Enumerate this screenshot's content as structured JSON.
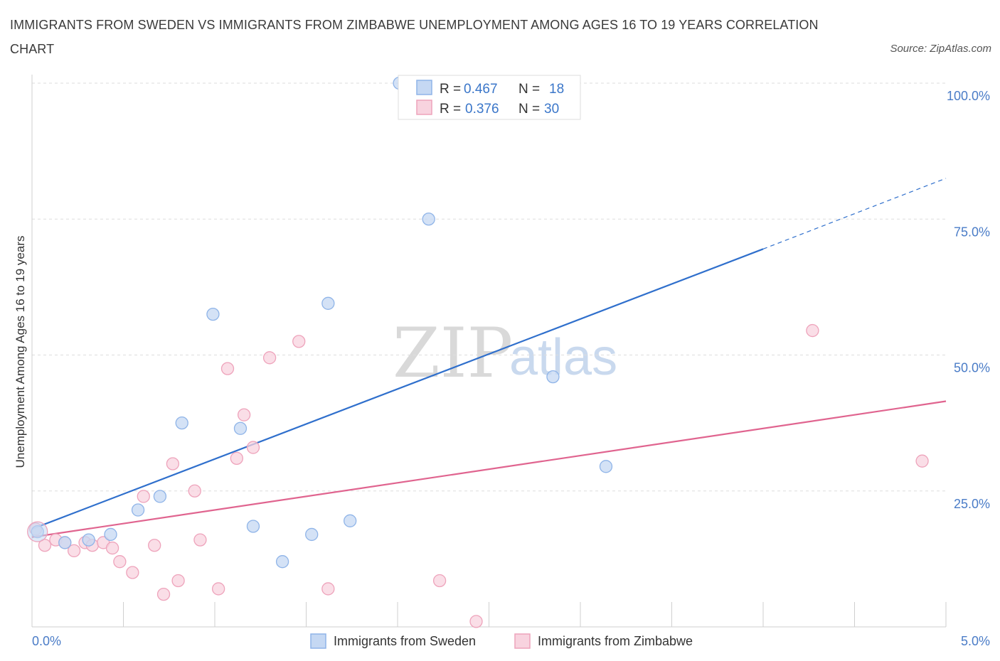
{
  "title": "IMMIGRANTS FROM SWEDEN VS IMMIGRANTS FROM ZIMBABWE UNEMPLOYMENT AMONG AGES 16 TO 19 YEARS CORRELATION CHART",
  "source": "Source: ZipAtlas.com",
  "watermark": {
    "zip": "ZIP",
    "atlas": "atlas"
  },
  "chart_data": {
    "type": "scatter",
    "xlabel": "",
    "ylabel": "Unemployment Among Ages 16 to 19 years",
    "xlim": [
      0,
      5
    ],
    "ylim": [
      0,
      100
    ],
    "x_tick_labels": {
      "min": "0.0%",
      "max": "5.0%"
    },
    "y_ticks": [
      {
        "value": 100,
        "label": "100.0%"
      },
      {
        "value": 75,
        "label": "75.0%"
      },
      {
        "value": 50,
        "label": "50.0%"
      },
      {
        "value": 25,
        "label": "25.0%"
      }
    ],
    "legend": {
      "entries": [
        {
          "r_label": "R =",
          "r_value": "0.467",
          "n_label": "N =",
          "n_value": "18"
        },
        {
          "r_label": "R =",
          "r_value": "0.376",
          "n_label": "N =",
          "n_value": "30"
        }
      ]
    },
    "series": [
      {
        "name": "Immigrants from Sweden",
        "color": "#8fb4e8",
        "fill": "#c5d8f3",
        "line_color": "#2f6fcc",
        "trend": {
          "x0": 0.0,
          "y0": 18.0,
          "x1": 4.0,
          "y1": 69.5,
          "dash_to_x": 5.0,
          "dash_to_y": 82.5
        },
        "points": [
          [
            0.03,
            17.5
          ],
          [
            0.18,
            15.5
          ],
          [
            0.31,
            16.0
          ],
          [
            0.43,
            17.0
          ],
          [
            0.58,
            21.5
          ],
          [
            0.7,
            24.0
          ],
          [
            0.82,
            37.5
          ],
          [
            0.99,
            57.5
          ],
          [
            1.14,
            36.5
          ],
          [
            1.21,
            18.5
          ],
          [
            1.37,
            12.0
          ],
          [
            1.53,
            17.0
          ],
          [
            1.62,
            59.5
          ],
          [
            1.74,
            19.5
          ],
          [
            2.01,
            100.0
          ],
          [
            2.17,
            75.0
          ],
          [
            2.85,
            46.0
          ],
          [
            3.14,
            29.5
          ]
        ]
      },
      {
        "name": "Immigrants from Zimbabwe",
        "color": "#eea3bb",
        "fill": "#f8d3df",
        "line_color": "#e0648f",
        "trend": {
          "x0": 0.0,
          "y0": 16.5,
          "x1": 5.0,
          "y1": 41.5
        },
        "points": [
          [
            0.02,
            18.0
          ],
          [
            0.07,
            15.0
          ],
          [
            0.13,
            16.0
          ],
          [
            0.18,
            15.5
          ],
          [
            0.23,
            14.0
          ],
          [
            0.29,
            15.5
          ],
          [
            0.33,
            15.0
          ],
          [
            0.39,
            15.5
          ],
          [
            0.44,
            14.5
          ],
          [
            0.48,
            12.0
          ],
          [
            0.55,
            10.0
          ],
          [
            0.61,
            24.0
          ],
          [
            0.67,
            15.0
          ],
          [
            0.72,
            6.0
          ],
          [
            0.77,
            30.0
          ],
          [
            0.8,
            8.5
          ],
          [
            0.89,
            25.0
          ],
          [
            0.92,
            16.0
          ],
          [
            1.02,
            7.0
          ],
          [
            1.07,
            47.5
          ],
          [
            1.12,
            31.0
          ],
          [
            1.16,
            39.0
          ],
          [
            1.21,
            33.0
          ],
          [
            1.3,
            49.5
          ],
          [
            1.46,
            52.5
          ],
          [
            1.62,
            7.0
          ],
          [
            2.23,
            8.5
          ],
          [
            2.43,
            1.0
          ],
          [
            4.27,
            54.5
          ],
          [
            4.87,
            30.5
          ]
        ]
      }
    ]
  }
}
